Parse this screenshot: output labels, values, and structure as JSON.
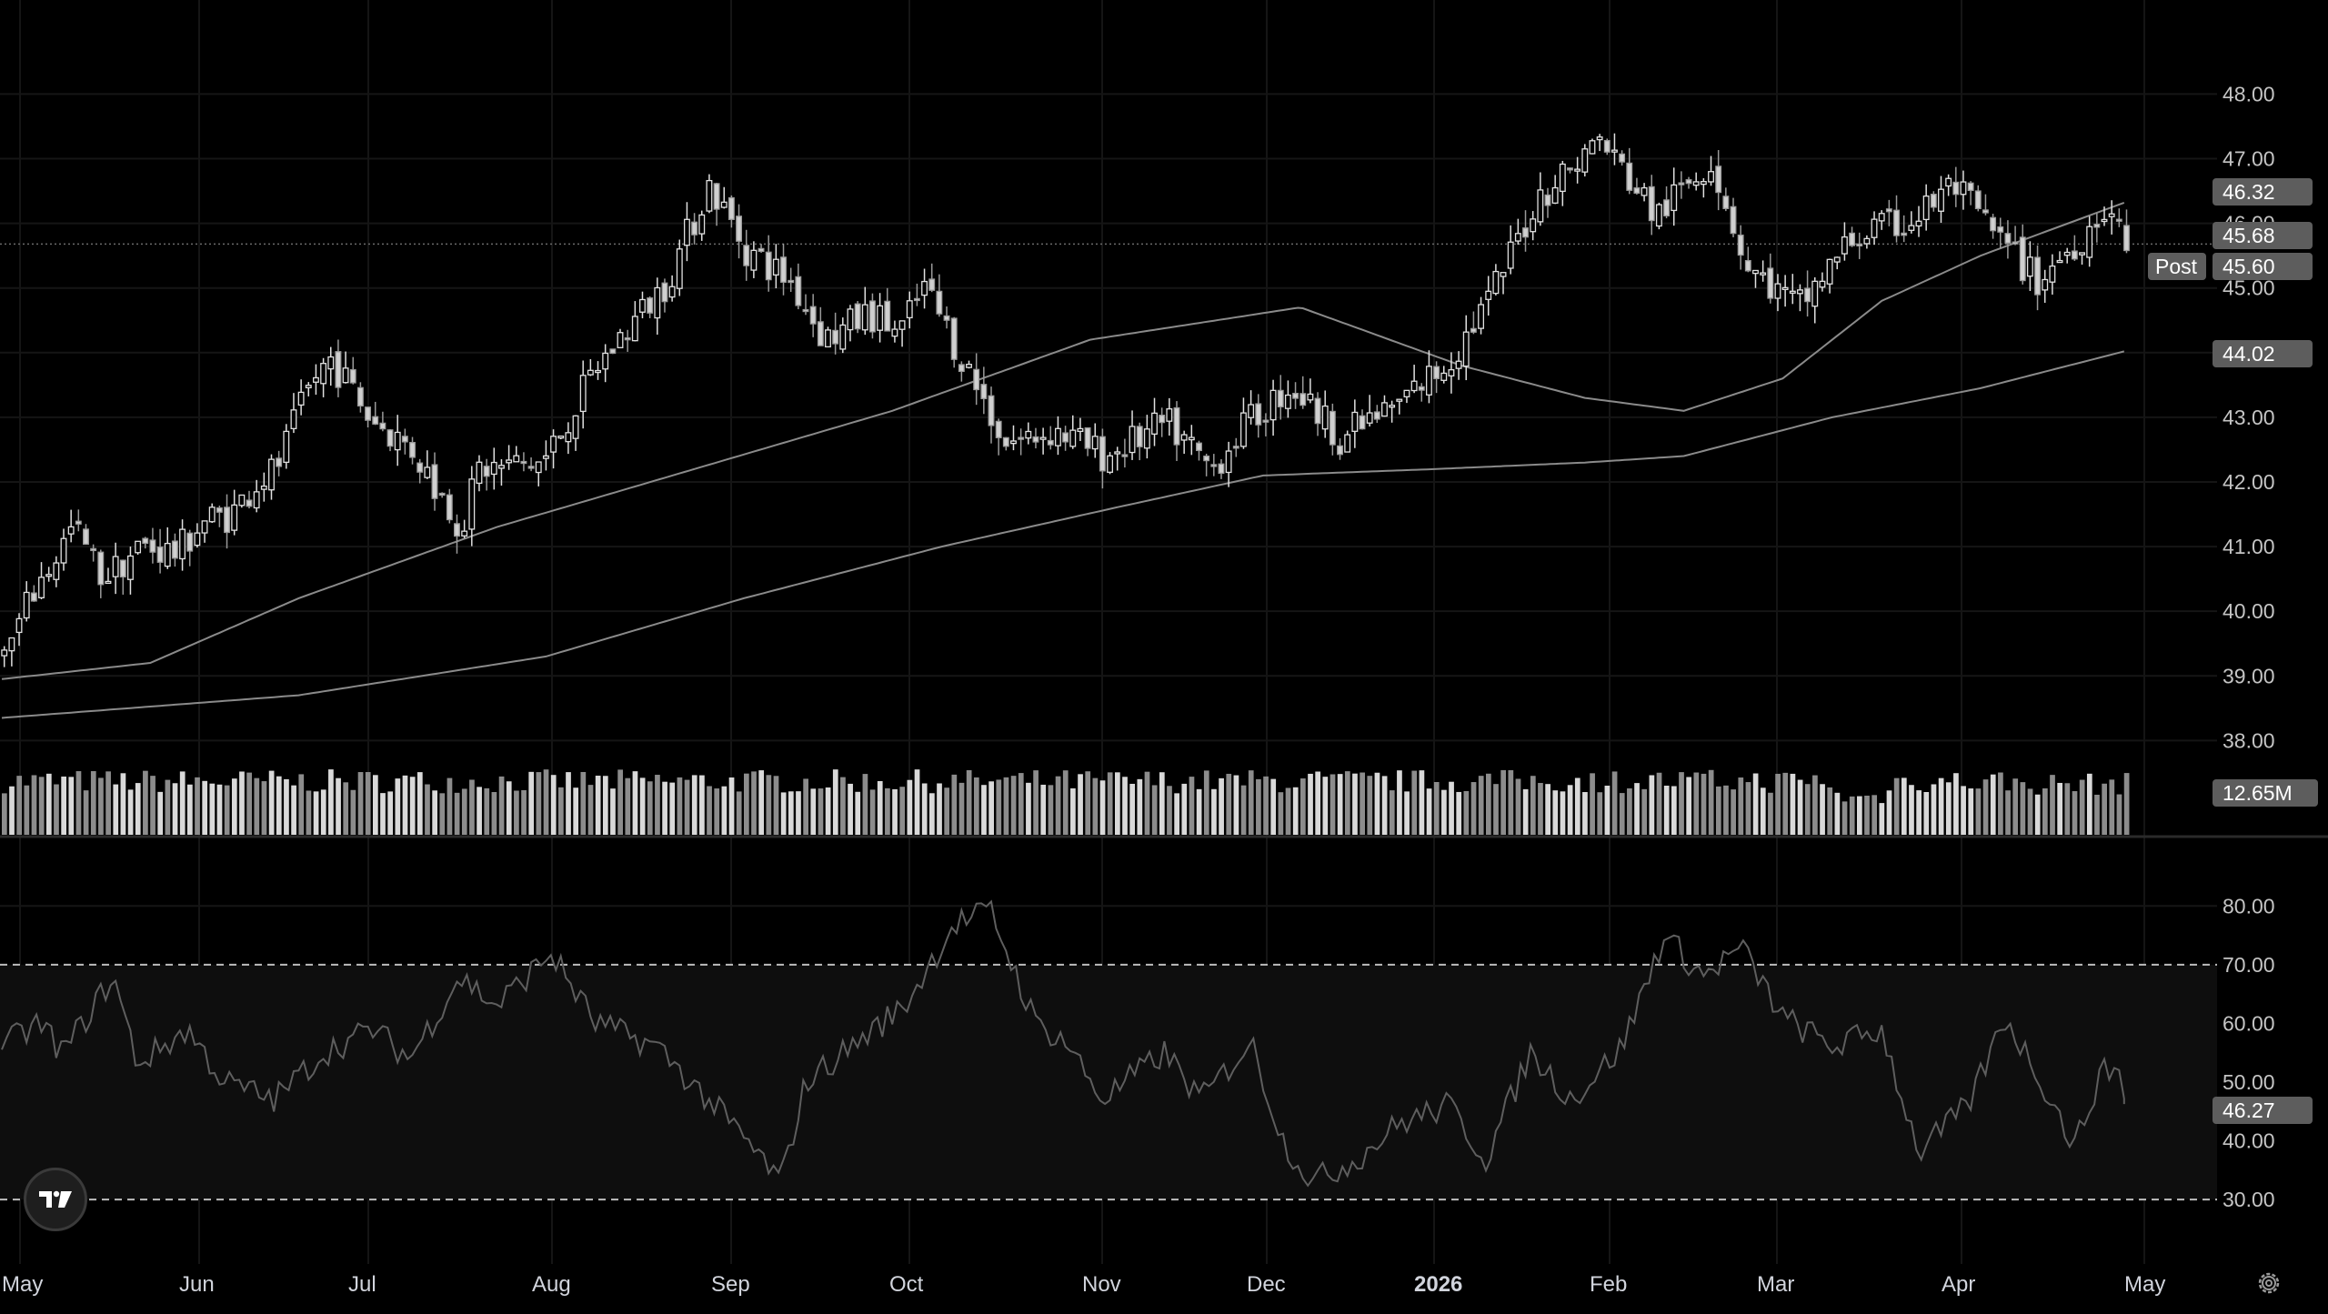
{
  "chart_data": [
    {
      "type": "candlestick",
      "title": "",
      "x_axis_labels": [
        "May",
        "Jun",
        "Jul",
        "Aug",
        "Sep",
        "Oct",
        "Nov",
        "Dec",
        "2026",
        "Feb",
        "Mar",
        "Apr",
        "May"
      ],
      "ylim": [
        37.4,
        48.4
      ],
      "y_ticks": [
        "48.00",
        "47.00",
        "46.00",
        "45.00",
        "44.00",
        "43.00",
        "42.00",
        "41.00",
        "40.00",
        "39.00",
        "38.00"
      ],
      "series": [
        {
          "name": "price",
          "anchors": [
            [
              0,
              39.3
            ],
            [
              12,
              40.3
            ],
            [
              28,
              41.3
            ],
            [
              40,
              40.5
            ],
            [
              55,
              41.0
            ],
            [
              70,
              40.9
            ],
            [
              80,
              41.4
            ],
            [
              92,
              41.5
            ],
            [
              102,
              42.0
            ],
            [
              110,
              42.2
            ],
            [
              125,
              43.6
            ],
            [
              132,
              43.9
            ],
            [
              148,
              43.0
            ],
            [
              165,
              42.5
            ],
            [
              185,
              41.3
            ],
            [
              192,
              42.2
            ],
            [
              218,
              42.3
            ],
            [
              240,
              43.8
            ],
            [
              268,
              45.1
            ],
            [
              285,
              46.6
            ],
            [
              300,
              45.6
            ],
            [
              318,
              45.1
            ],
            [
              332,
              44.2
            ],
            [
              350,
              44.6
            ],
            [
              362,
              44.3
            ],
            [
              372,
              45.0
            ],
            [
              382,
              44.3
            ],
            [
              405,
              42.6
            ],
            [
              425,
              42.8
            ],
            [
              445,
              42.4
            ],
            [
              470,
              42.9
            ],
            [
              488,
              42.2
            ],
            [
              500,
              42.8
            ],
            [
              520,
              43.5
            ],
            [
              540,
              42.7
            ],
            [
              560,
              43.1
            ],
            [
              585,
              43.9
            ],
            [
              600,
              44.8
            ],
            [
              620,
              46.4
            ],
            [
              645,
              47.3
            ],
            [
              668,
              46.1
            ],
            [
              690,
              47.0
            ],
            [
              705,
              45.3
            ],
            [
              725,
              44.7
            ],
            [
              748,
              45.8
            ],
            [
              770,
              46.0
            ],
            [
              788,
              46.6
            ],
            [
              805,
              45.8
            ],
            [
              822,
              45.1
            ],
            [
              840,
              45.8
            ],
            [
              850,
              46.3
            ],
            [
              858,
              45.6
            ]
          ]
        },
        {
          "name": "MA-50",
          "points": [
            [
              0,
              38.95
            ],
            [
              60,
              39.2
            ],
            [
              120,
              40.2
            ],
            [
              200,
              41.3
            ],
            [
              280,
              42.2
            ],
            [
              360,
              43.1
            ],
            [
              440,
              44.2
            ],
            [
              525,
              44.7
            ],
            [
              590,
              43.8
            ],
            [
              640,
              43.3
            ],
            [
              680,
              43.1
            ],
            [
              720,
              43.6
            ],
            [
              760,
              44.8
            ],
            [
              800,
              45.5
            ],
            [
              858,
              46.32
            ]
          ]
        },
        {
          "name": "MA-200",
          "points": [
            [
              0,
              38.35
            ],
            [
              120,
              38.7
            ],
            [
              220,
              39.3
            ],
            [
              300,
              40.2
            ],
            [
              380,
              41.0
            ],
            [
              450,
              41.6
            ],
            [
              510,
              42.1
            ],
            [
              580,
              42.2
            ],
            [
              640,
              42.3
            ],
            [
              680,
              42.4
            ],
            [
              740,
              43.0
            ],
            [
              800,
              43.45
            ],
            [
              858,
              44.02
            ]
          ]
        }
      ],
      "price_labels": [
        {
          "text": "46.32",
          "value": 46.32,
          "bg": "#5d5d5d"
        },
        {
          "text": "45.68",
          "value": 45.68,
          "bg": "#5d5d5d"
        },
        {
          "text": "45.60",
          "value": 45.6,
          "bg": "#5d5d5d",
          "prefix": "Post"
        },
        {
          "text": "44.02",
          "value": 44.02,
          "bg": "#5d5d5d"
        }
      ],
      "last_price_line": 45.68
    },
    {
      "type": "bar",
      "name": "volume",
      "last_label": "12.65M",
      "baseline_note": "",
      "values_note": "",
      "spikes": [
        [
          160,
          1.9
        ],
        [
          320,
          1.7
        ],
        [
          352,
          1.6
        ],
        [
          600,
          1.4
        ],
        [
          706,
          1.7
        ],
        [
          718,
          3.0
        ],
        [
          766,
          1.9
        ],
        [
          790,
          1.9
        ]
      ]
    },
    {
      "type": "line",
      "name": "RSI",
      "ylim": [
        26,
        85
      ],
      "y_ticks": [
        "80.00",
        "70.00",
        "60.00",
        "50.00",
        "40.00",
        "30.00"
      ],
      "bands": [
        70,
        30
      ],
      "last_label": "46.27",
      "points": [
        [
          0,
          56
        ],
        [
          15,
          60
        ],
        [
          25,
          55
        ],
        [
          45,
          68
        ],
        [
          55,
          53
        ],
        [
          75,
          59
        ],
        [
          90,
          50
        ],
        [
          110,
          47
        ],
        [
          130,
          55
        ],
        [
          150,
          59
        ],
        [
          165,
          54
        ],
        [
          185,
          68
        ],
        [
          200,
          63
        ],
        [
          222,
          72
        ],
        [
          240,
          60
        ],
        [
          265,
          56
        ],
        [
          290,
          45
        ],
        [
          305,
          38
        ],
        [
          315,
          33
        ],
        [
          325,
          50
        ],
        [
          340,
          55
        ],
        [
          365,
          63
        ],
        [
          385,
          77
        ],
        [
          400,
          79
        ],
        [
          418,
          60
        ],
        [
          430,
          57
        ],
        [
          445,
          47
        ],
        [
          470,
          55
        ],
        [
          485,
          47
        ],
        [
          505,
          57
        ],
        [
          518,
          40
        ],
        [
          530,
          33
        ],
        [
          548,
          37
        ],
        [
          565,
          43
        ],
        [
          585,
          46
        ],
        [
          600,
          37
        ],
        [
          618,
          55
        ],
        [
          635,
          47
        ],
        [
          655,
          56
        ],
        [
          672,
          75
        ],
        [
          688,
          68
        ],
        [
          703,
          73
        ],
        [
          720,
          61
        ],
        [
          740,
          56
        ],
        [
          760,
          59
        ],
        [
          775,
          38
        ],
        [
          795,
          46
        ],
        [
          810,
          61
        ],
        [
          825,
          50
        ],
        [
          838,
          39
        ],
        [
          848,
          51
        ],
        [
          856,
          53
        ],
        [
          858,
          46.27
        ]
      ]
    }
  ],
  "ui": {
    "post_label": "Post",
    "settings_icon": "gear-icon",
    "logo_icon": "tradingview-logo-icon"
  }
}
